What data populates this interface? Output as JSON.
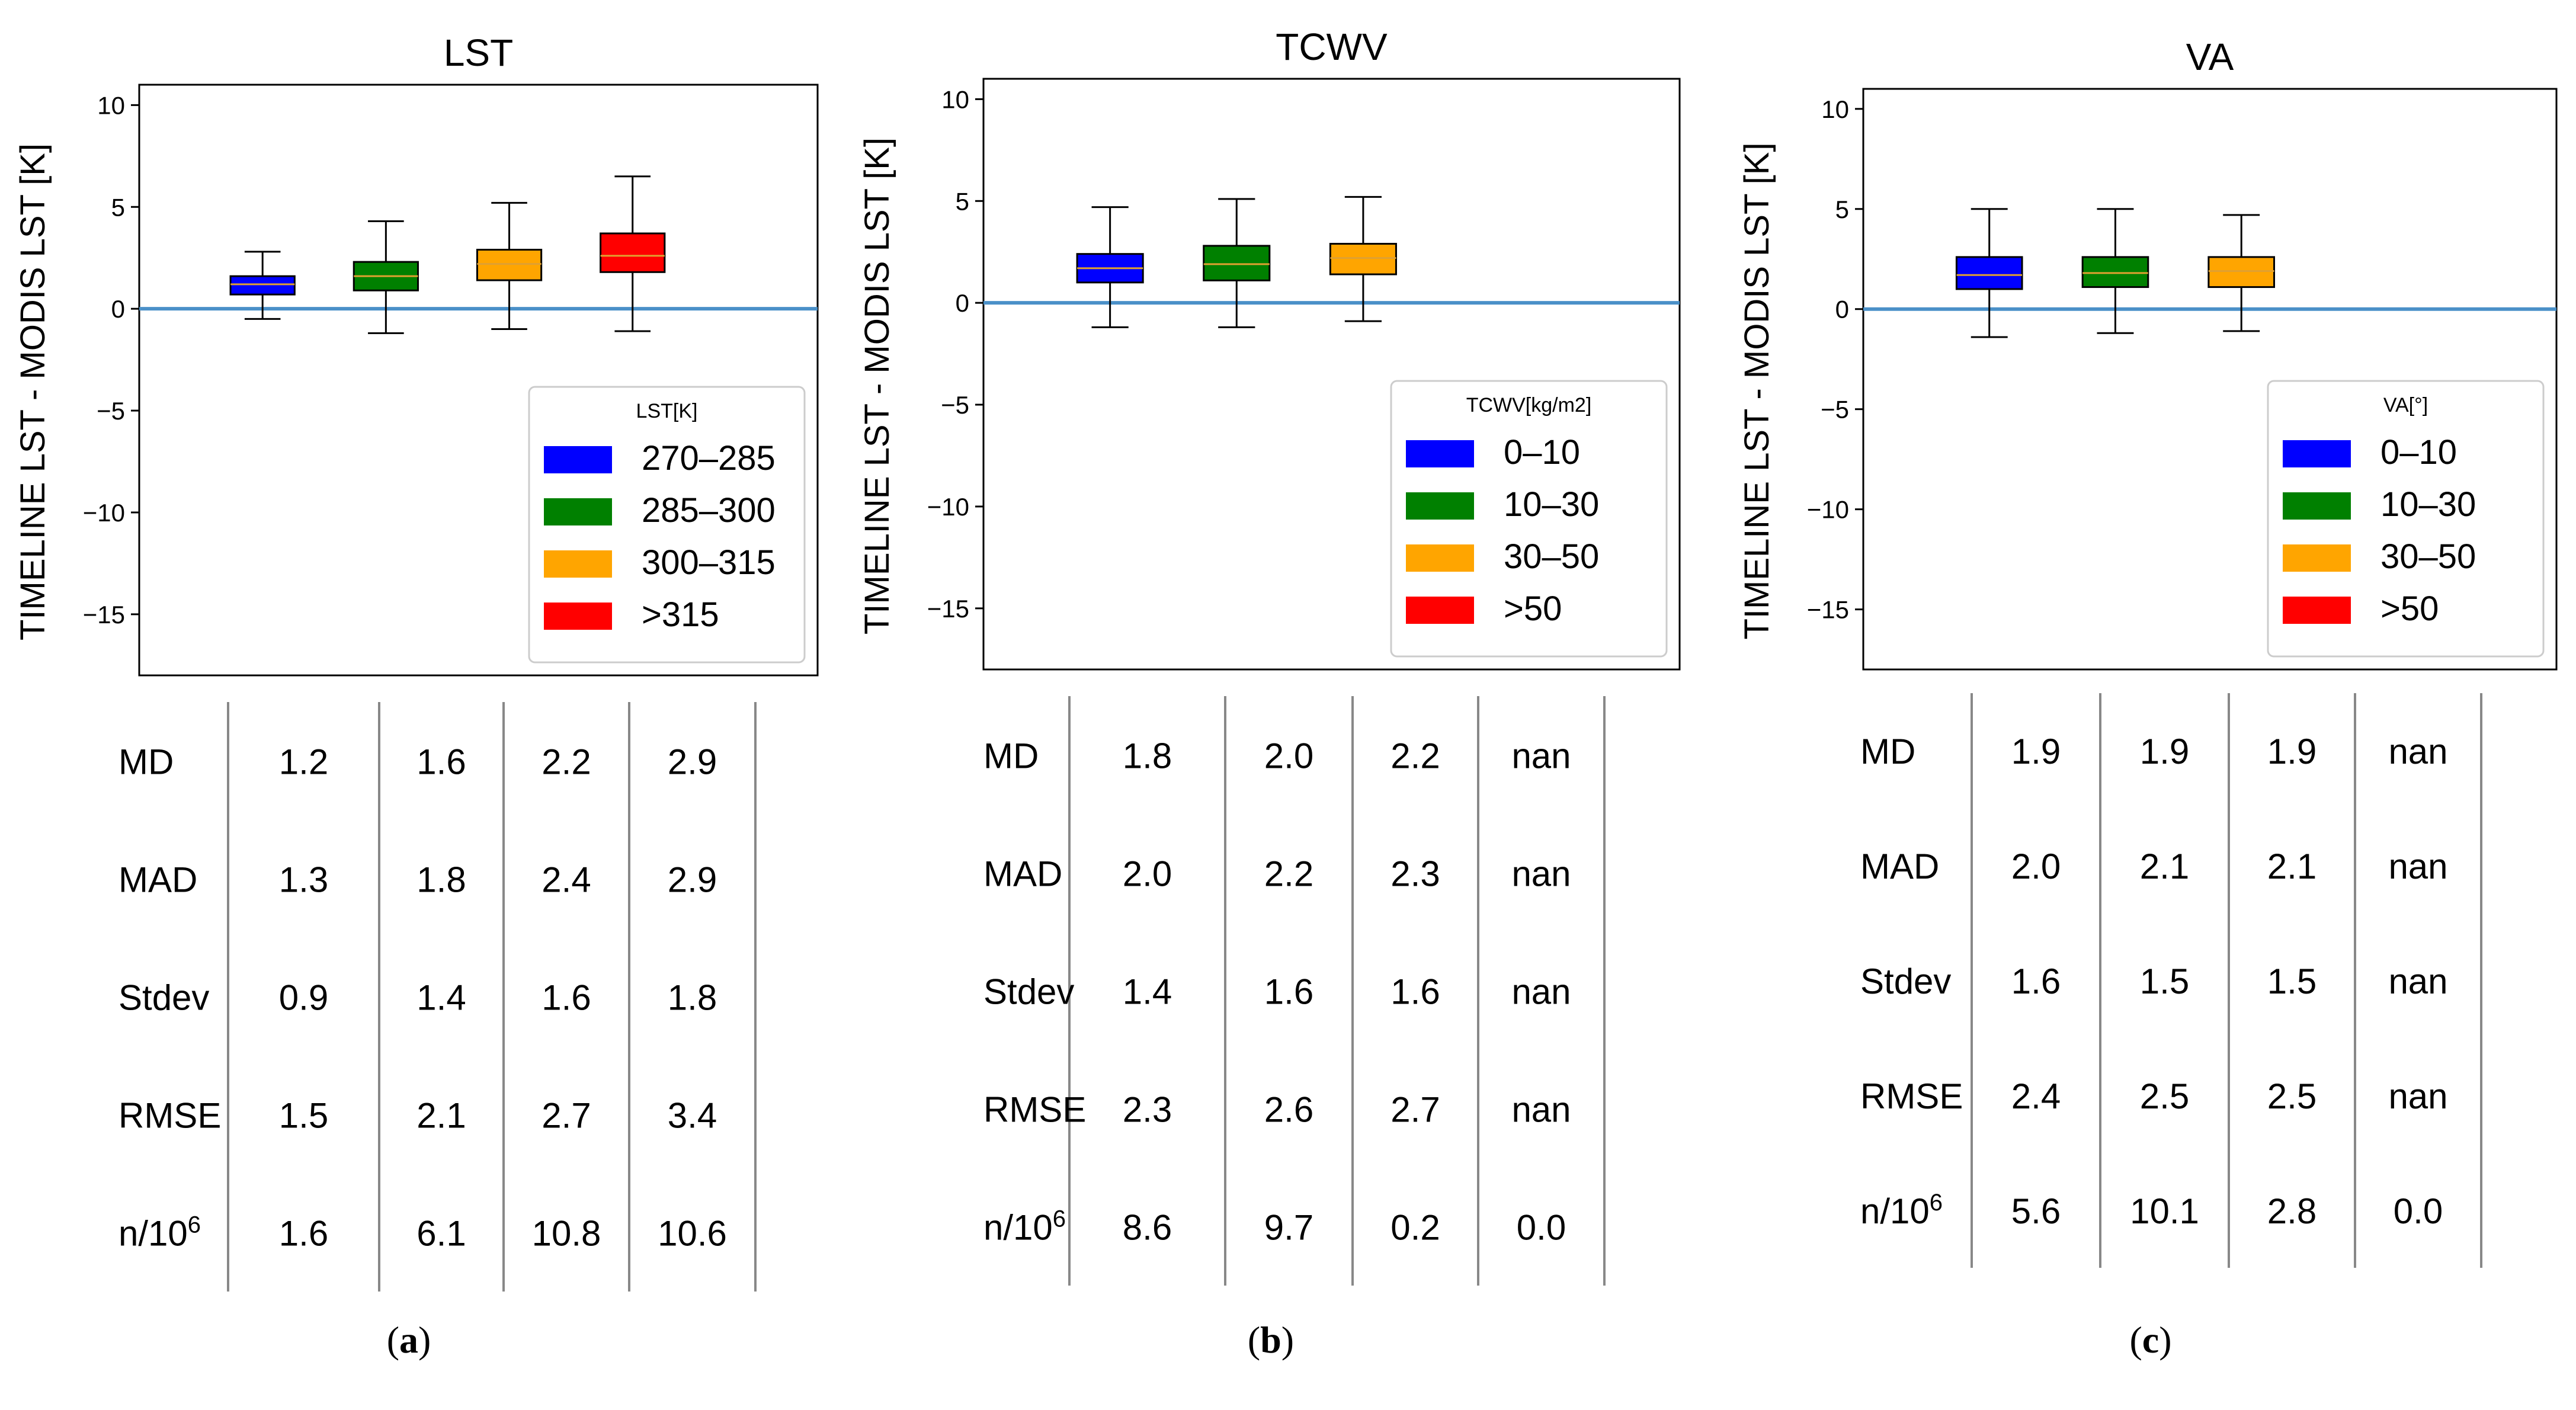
{
  "chart_data": [
    {
      "type": "box",
      "title": "LST",
      "ylabel": "TIMELINE LST - MODIS LST [K]",
      "ylim": [
        -18,
        11
      ],
      "yticks": [
        10,
        5,
        0,
        -5,
        -10,
        -15
      ],
      "reference_line": 0,
      "legend": {
        "title": "LST[K]",
        "placement": "bottom-right",
        "entries": [
          {
            "label": "270–285",
            "color": "#0000ff"
          },
          {
            "label": "285–300",
            "color": "#008000"
          },
          {
            "label": "300–315",
            "color": "#ffa500"
          },
          {
            "label": ">315",
            "color": "#ff0000"
          }
        ]
      },
      "boxes": [
        {
          "color": "#0000ff",
          "whisker_low": -0.5,
          "q1": 0.7,
          "median": 1.2,
          "q3": 1.6,
          "whisker_high": 2.8
        },
        {
          "color": "#008000",
          "whisker_low": -1.2,
          "q1": 0.9,
          "median": 1.6,
          "q3": 2.3,
          "whisker_high": 4.3
        },
        {
          "color": "#ffa500",
          "whisker_low": -1.0,
          "q1": 1.4,
          "median": 2.2,
          "q3": 2.9,
          "whisker_high": 5.2
        },
        {
          "color": "#ff0000",
          "whisker_low": -1.1,
          "q1": 1.8,
          "median": 2.6,
          "q3": 3.7,
          "whisker_high": 6.5
        }
      ],
      "stats_table": {
        "rows": [
          {
            "label": "MD",
            "values": [
              "1.2",
              "1.6",
              "2.2",
              "2.9"
            ]
          },
          {
            "label": "MAD",
            "values": [
              "1.3",
              "1.8",
              "2.4",
              "2.9"
            ]
          },
          {
            "label": "Stdev",
            "values": [
              "0.9",
              "1.4",
              "1.6",
              "1.8"
            ]
          },
          {
            "label": "RMSE",
            "values": [
              "1.5",
              "2.1",
              "2.7",
              "3.4"
            ]
          },
          {
            "label": "n/10",
            "sup": "6",
            "values": [
              "1.6",
              "6.1",
              "10.8",
              "10.6"
            ]
          }
        ]
      },
      "caption": "a"
    },
    {
      "type": "box",
      "title": "TCWV",
      "ylabel": "TIMELINE LST - MODIS LST [K]",
      "ylim": [
        -18,
        11
      ],
      "yticks": [
        10,
        5,
        0,
        -5,
        -10,
        -15
      ],
      "reference_line": 0,
      "legend": {
        "title": "TCWV[kg/m2]",
        "placement": "bottom-right",
        "entries": [
          {
            "label": "0–10",
            "color": "#0000ff"
          },
          {
            "label": "10–30",
            "color": "#008000"
          },
          {
            "label": "30–50",
            "color": "#ffa500"
          },
          {
            "label": ">50",
            "color": "#ff0000"
          }
        ]
      },
      "boxes": [
        {
          "color": "#0000ff",
          "whisker_low": -1.2,
          "q1": 1.0,
          "median": 1.7,
          "q3": 2.4,
          "whisker_high": 4.7
        },
        {
          "color": "#008000",
          "whisker_low": -1.2,
          "q1": 1.1,
          "median": 1.9,
          "q3": 2.8,
          "whisker_high": 5.1
        },
        {
          "color": "#ffa500",
          "whisker_low": -0.9,
          "q1": 1.4,
          "median": 2.2,
          "q3": 2.9,
          "whisker_high": 5.2
        }
      ],
      "stats_table": {
        "rows": [
          {
            "label": "MD",
            "values": [
              "1.8",
              "2.0",
              "2.2",
              "nan"
            ]
          },
          {
            "label": "MAD",
            "values": [
              "2.0",
              "2.2",
              "2.3",
              "nan"
            ]
          },
          {
            "label": "Stdev",
            "values": [
              "1.4",
              "1.6",
              "1.6",
              "nan"
            ]
          },
          {
            "label": "RMSE",
            "values": [
              "2.3",
              "2.6",
              "2.7",
              "nan"
            ]
          },
          {
            "label": "n/10",
            "sup": "6",
            "values": [
              "8.6",
              "9.7",
              "0.2",
              "0.0"
            ]
          }
        ]
      },
      "caption": "b"
    },
    {
      "type": "box",
      "title": "VA",
      "ylabel": "TIMELINE LST - MODIS LST [K]",
      "ylim": [
        -18,
        11
      ],
      "yticks": [
        10,
        5,
        0,
        -5,
        -10,
        -15
      ],
      "reference_line": 0,
      "legend": {
        "title": "VA[°]",
        "placement": "bottom-right",
        "entries": [
          {
            "label": "0–10",
            "color": "#0000ff"
          },
          {
            "label": "10–30",
            "color": "#008000"
          },
          {
            "label": "30–50",
            "color": "#ffa500"
          },
          {
            "label": ">50",
            "color": "#ff0000"
          }
        ]
      },
      "boxes": [
        {
          "color": "#0000ff",
          "whisker_low": -1.4,
          "q1": 1.0,
          "median": 1.7,
          "q3": 2.6,
          "whisker_high": 5.0
        },
        {
          "color": "#008000",
          "whisker_low": -1.2,
          "q1": 1.1,
          "median": 1.8,
          "q3": 2.6,
          "whisker_high": 5.0
        },
        {
          "color": "#ffa500",
          "whisker_low": -1.1,
          "q1": 1.1,
          "median": 1.9,
          "q3": 2.6,
          "whisker_high": 4.7
        }
      ],
      "stats_table": {
        "rows": [
          {
            "label": "MD",
            "values": [
              "1.9",
              "1.9",
              "1.9",
              "nan"
            ]
          },
          {
            "label": "MAD",
            "values": [
              "2.0",
              "2.1",
              "2.1",
              "nan"
            ]
          },
          {
            "label": "Stdev",
            "values": [
              "1.6",
              "1.5",
              "1.5",
              "nan"
            ]
          },
          {
            "label": "RMSE",
            "values": [
              "2.4",
              "2.5",
              "2.5",
              "nan"
            ]
          },
          {
            "label": "n/10",
            "sup": "6",
            "values": [
              "5.6",
              "10.1",
              "2.8",
              "0.0"
            ]
          }
        ]
      },
      "caption": "c"
    }
  ],
  "colors": {
    "axis": "#000000",
    "reference_line": "#4a90c8",
    "median_line": "#e0a030",
    "legend_border": "#cccccc",
    "table_rule": "#888888"
  }
}
